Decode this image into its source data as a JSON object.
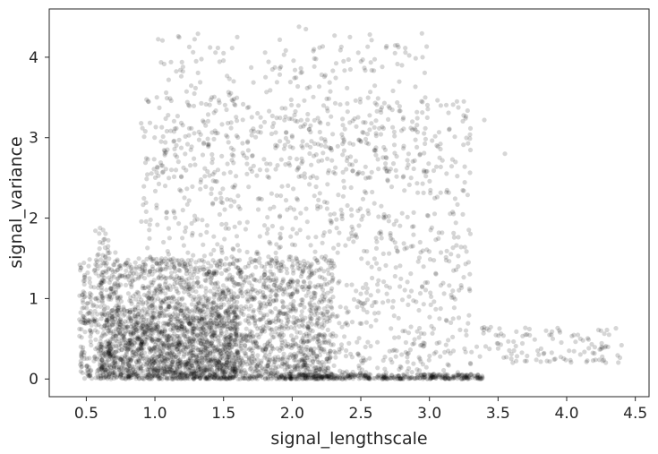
{
  "chart_data": {
    "type": "scatter",
    "title": "",
    "xlabel": "signal_lengthscale",
    "ylabel": "signal_variance",
    "xlim": [
      0.23,
      4.6
    ],
    "ylim": [
      -0.22,
      4.6
    ],
    "xticks": [
      0.5,
      1.0,
      1.5,
      2.0,
      2.5,
      3.0,
      3.5,
      4.0,
      4.5
    ],
    "xtick_labels": [
      "0.5",
      "1.0",
      "1.5",
      "2.0",
      "2.5",
      "3.0",
      "3.5",
      "4.0",
      "4.5"
    ],
    "yticks": [
      0,
      1,
      2,
      3,
      4
    ],
    "ytick_labels": [
      "0",
      "1",
      "2",
      "3",
      "4"
    ],
    "grid": false,
    "legend": "none",
    "point_color": "#000000",
    "point_opacity": 0.16,
    "series": [
      {
        "clusters": [
          {
            "x_range": [
              0.45,
              2.3
            ],
            "y_range": [
              0.0,
              1.5
            ],
            "count": 2200
          },
          {
            "x_range": [
              0.6,
              1.6
            ],
            "y_range": [
              0.0,
              0.9
            ],
            "count": 900
          },
          {
            "x_range": [
              0.9,
              3.3
            ],
            "y_range": [
              0.0,
              3.5
            ],
            "count": 1300
          },
          {
            "x_range": [
              1.0,
              3.0
            ],
            "y_range": [
              2.5,
              4.3
            ],
            "count": 330
          },
          {
            "x_range": [
              1.9,
              3.4
            ],
            "y_range": [
              0.0,
              0.06
            ],
            "count": 340
          },
          {
            "x_range": [
              3.3,
              4.4
            ],
            "y_range": [
              0.2,
              0.65
            ],
            "count": 110
          },
          {
            "x_range": [
              0.55,
              0.75
            ],
            "y_range": [
              1.1,
              1.9
            ],
            "count": 50
          }
        ],
        "points": [
          [
            2.05,
            4.38
          ],
          [
            2.1,
            4.35
          ],
          [
            1.6,
            4.25
          ],
          [
            2.2,
            4.12
          ],
          [
            2.55,
            4.13
          ],
          [
            1.5,
            4.05
          ],
          [
            2.95,
            4.0
          ],
          [
            1.3,
            3.95
          ],
          [
            2.8,
            3.9
          ],
          [
            1.1,
            3.72
          ],
          [
            3.2,
            3.45
          ],
          [
            3.4,
            3.22
          ],
          [
            0.9,
            3.18
          ],
          [
            1.05,
            3.13
          ],
          [
            1.08,
            2.61
          ],
          [
            1.12,
            2.6
          ],
          [
            3.55,
            2.8
          ],
          [
            1.8,
            1.3
          ],
          [
            0.88,
            1.25
          ],
          [
            2.38,
            2.38
          ],
          [
            0.6,
            1.7
          ],
          [
            0.48,
            1.22
          ],
          [
            3.7,
            0.55
          ],
          [
            3.85,
            0.6
          ],
          [
            4.25,
            0.6
          ],
          [
            4.4,
            0.42
          ],
          [
            3.5,
            0.38
          ],
          [
            4.1,
            0.5
          ]
        ]
      }
    ]
  }
}
